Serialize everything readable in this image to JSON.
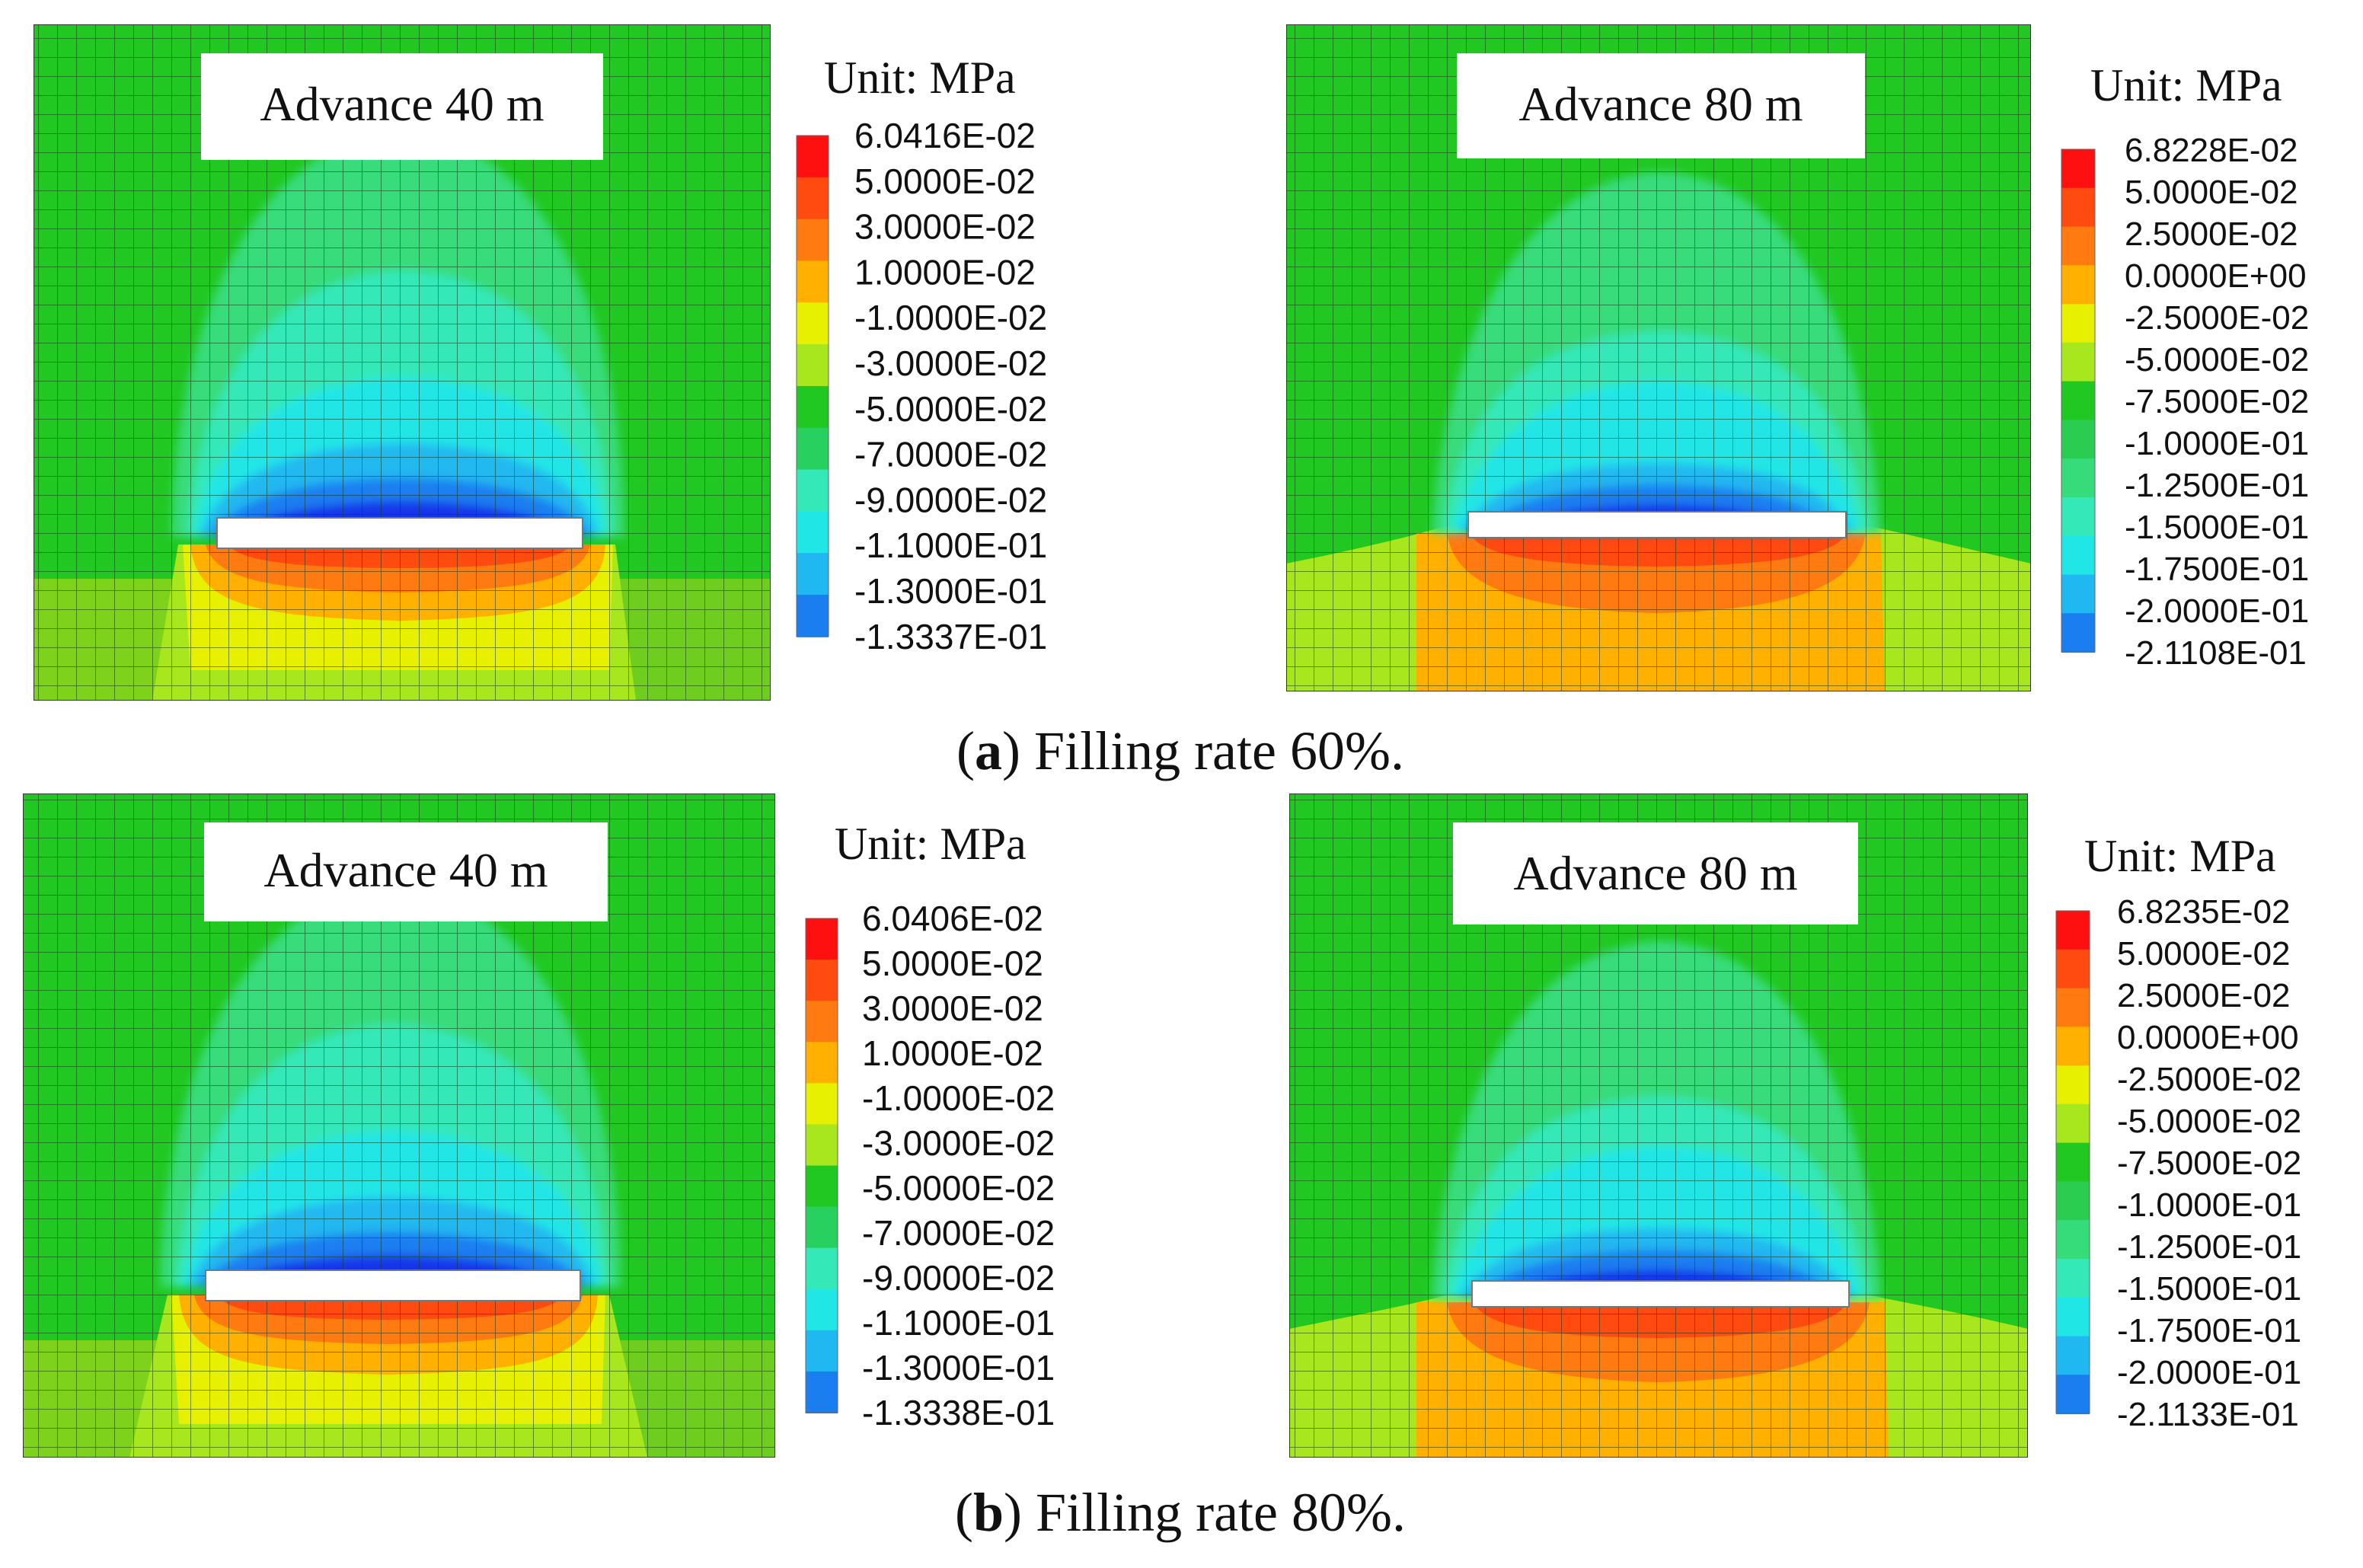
{
  "chart_data": [
    {
      "type": "heatmap",
      "subfigure": "a",
      "title": "Advance 40 m",
      "unit_label": "Unit: MPa",
      "legend_labels": [
        "6.0416E-02",
        "5.0000E-02",
        "3.0000E-02",
        "1.0000E-02",
        "-1.0000E-02",
        "-3.0000E-02",
        "-5.0000E-02",
        "-7.0000E-02",
        "-9.0000E-02",
        "-1.1000E-01",
        "-1.3000E-01",
        "-1.3337E-01"
      ],
      "max": 0.060416,
      "min": -0.13337
    },
    {
      "type": "heatmap",
      "subfigure": "a",
      "title": "Advance 80 m",
      "unit_label": "Unit: MPa",
      "legend_labels": [
        "6.8228E-02",
        "5.0000E-02",
        "2.5000E-02",
        "0.0000E+00",
        "-2.5000E-02",
        "-5.0000E-02",
        "-7.5000E-02",
        "-1.0000E-01",
        "-1.2500E-01",
        "-1.5000E-01",
        "-1.7500E-01",
        "-2.0000E-01",
        "-2.1108E-01"
      ],
      "max": 0.068228,
      "min": -0.21108
    },
    {
      "type": "heatmap",
      "subfigure": "b",
      "title": "Advance 40 m",
      "unit_label": "Unit: MPa",
      "legend_labels": [
        "6.0406E-02",
        "5.0000E-02",
        "3.0000E-02",
        "1.0000E-02",
        "-1.0000E-02",
        "-3.0000E-02",
        "-5.0000E-02",
        "-7.0000E-02",
        "-9.0000E-02",
        "-1.1000E-01",
        "-1.3000E-01",
        "-1.3338E-01"
      ],
      "max": 0.060406,
      "min": -0.13338
    },
    {
      "type": "heatmap",
      "subfigure": "b",
      "title": "Advance 80 m",
      "unit_label": "Unit: MPa",
      "legend_labels": [
        "6.8235E-02",
        "5.0000E-02",
        "2.5000E-02",
        "0.0000E+00",
        "-2.5000E-02",
        "-5.0000E-02",
        "-7.5000E-02",
        "-1.0000E-01",
        "-1.2500E-01",
        "-1.5000E-01",
        "-1.7500E-01",
        "-2.0000E-01",
        "-2.1133E-01"
      ],
      "max": 0.068235,
      "min": -0.21133
    }
  ],
  "captions": {
    "a": {
      "letter": "a",
      "text": " Filling rate 60%."
    },
    "b": {
      "letter": "b",
      "text": " Filling rate 80%."
    }
  },
  "colors": {
    "background_green": "#21c821",
    "light_green": "#37dc7a",
    "cyan_green": "#35e8b8",
    "cyan": "#20e6e6",
    "light_blue": "#20b8f0",
    "mid_blue": "#1a7ef0",
    "blue": "#1535e8",
    "deep_blue": "#0000ff",
    "yellow_green": "#a8e61e",
    "yellow": "#e6f000",
    "orange": "#ffb000",
    "dark_orange": "#ff7a10",
    "red_orange": "#ff4a10",
    "red": "#ff1010",
    "grid": "#1a3a1a"
  }
}
